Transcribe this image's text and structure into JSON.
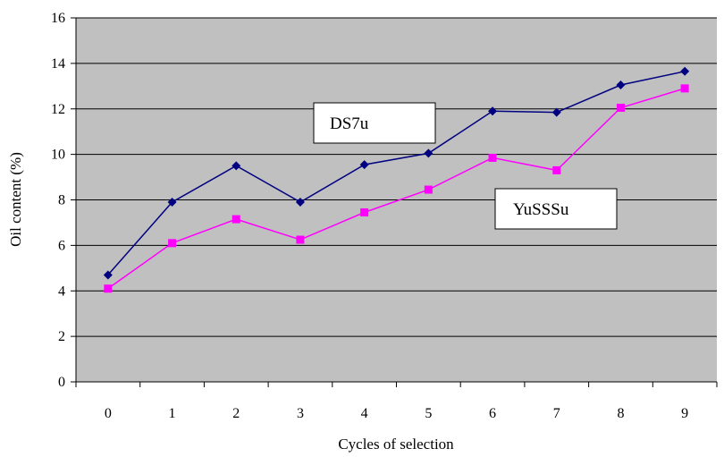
{
  "chart_data": {
    "type": "line",
    "title": "",
    "xlabel": "Cycles of selection",
    "ylabel": "Oil content (%)",
    "categories": [
      "0",
      "1",
      "2",
      "3",
      "4",
      "5",
      "6",
      "7",
      "8",
      "9"
    ],
    "ylim": [
      0,
      16
    ],
    "yticks": [
      "0",
      "2",
      "4",
      "6",
      "8",
      "10",
      "12",
      "14",
      "16"
    ],
    "grid": "horizontal",
    "plot_background": "#c0c0c0",
    "series": [
      {
        "name": "DS7u",
        "color": "#000080",
        "marker": "diamond",
        "values": [
          4.7,
          7.9,
          9.5,
          7.9,
          9.55,
          10.05,
          11.9,
          11.85,
          13.05,
          13.65
        ]
      },
      {
        "name": "YuSSSu",
        "color": "#ff00ff",
        "marker": "square",
        "values": [
          4.1,
          6.1,
          7.15,
          6.25,
          7.45,
          8.45,
          9.85,
          9.3,
          12.05,
          12.9
        ]
      }
    ]
  }
}
